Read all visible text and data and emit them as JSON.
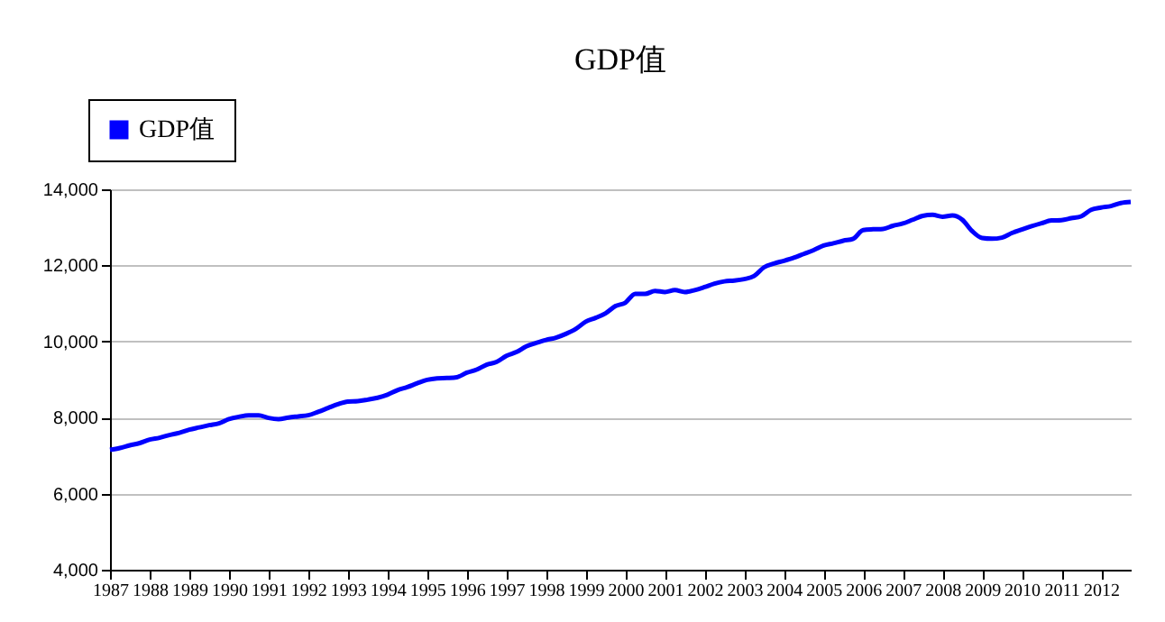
{
  "chart_data": {
    "type": "line",
    "title": "GDP值",
    "legend": "top left",
    "grid": "y",
    "line_style": "solid",
    "marker": "none",
    "xlim": [
      1987,
      2012.75
    ],
    "xticks": [
      1987,
      1988,
      1989,
      1990,
      1991,
      1992,
      1993,
      1994,
      1995,
      1996,
      1997,
      1998,
      1999,
      2000,
      2001,
      2002,
      2003,
      2004,
      2005,
      2006,
      2007,
      2008,
      2009,
      2010,
      2011,
      2012
    ],
    "ylim": [
      4000,
      14000
    ],
    "yticks": [
      {
        "value": 4000,
        "label": "4,000"
      },
      {
        "value": 6000,
        "label": "6,000"
      },
      {
        "value": 8000,
        "label": "8,000"
      },
      {
        "value": 10000,
        "label": "10,000"
      },
      {
        "value": 12000,
        "label": "12,000"
      },
      {
        "value": 14000,
        "label": "14,000"
      }
    ],
    "x": [
      1987,
      1987.25,
      1987.5,
      1987.75,
      1988,
      1988.25,
      1988.5,
      1988.75,
      1989,
      1989.25,
      1989.5,
      1989.75,
      1990,
      1990.25,
      1990.5,
      1990.75,
      1991,
      1991.25,
      1991.5,
      1991.75,
      1992,
      1992.25,
      1992.5,
      1992.75,
      1993,
      1993.25,
      1993.5,
      1993.75,
      1994,
      1994.25,
      1994.5,
      1994.75,
      1995,
      1995.25,
      1995.5,
      1995.75,
      1996,
      1996.25,
      1996.5,
      1996.75,
      1997,
      1997.25,
      1997.5,
      1997.75,
      1998,
      1998.25,
      1998.5,
      1998.75,
      1999,
      1999.25,
      1999.5,
      1999.75,
      2000,
      2000.25,
      2000.5,
      2000.75,
      2001,
      2001.25,
      2001.5,
      2001.75,
      2002,
      2002.25,
      2002.5,
      2002.75,
      2003,
      2003.25,
      2003.5,
      2003.75,
      2004,
      2004.25,
      2004.5,
      2004.75,
      2005,
      2005.25,
      2005.5,
      2005.75,
      2006,
      2006.25,
      2006.5,
      2006.75,
      2007,
      2007.25,
      2007.5,
      2007.75,
      2008,
      2008.25,
      2008.5,
      2008.75,
      2009,
      2009.25,
      2009.5,
      2009.75,
      2010,
      2010.25,
      2010.5,
      2010.75,
      2011,
      2011.25,
      2011.5,
      2011.75,
      2012,
      2012.25,
      2012.5,
      2012.75
    ],
    "series": [
      {
        "name": "GDP值",
        "color": "#0000ff",
        "values": [
          7150,
          7200,
          7270,
          7330,
          7420,
          7470,
          7540,
          7600,
          7680,
          7740,
          7800,
          7850,
          7960,
          8020,
          8060,
          8060,
          7990,
          7960,
          8000,
          8030,
          8060,
          8150,
          8250,
          8350,
          8420,
          8430,
          8470,
          8520,
          8600,
          8720,
          8800,
          8900,
          8990,
          9030,
          9040,
          9060,
          9180,
          9260,
          9390,
          9460,
          9620,
          9720,
          9870,
          9960,
          10040,
          10100,
          10200,
          10330,
          10520,
          10620,
          10740,
          10930,
          11020,
          11250,
          11250,
          11330,
          11300,
          11350,
          11300,
          11350,
          11430,
          11520,
          11580,
          11600,
          11640,
          11720,
          11950,
          12050,
          12120,
          12200,
          12300,
          12400,
          12520,
          12580,
          12650,
          12700,
          12930,
          12950,
          12960,
          13040,
          13100,
          13200,
          13300,
          13330,
          13280,
          13310,
          13200,
          12900,
          12720,
          12700,
          12730,
          12850,
          12940,
          13030,
          13110,
          13180,
          13190,
          13240,
          13290,
          13460,
          13520,
          13560,
          13640,
          13670
        ]
      }
    ]
  }
}
